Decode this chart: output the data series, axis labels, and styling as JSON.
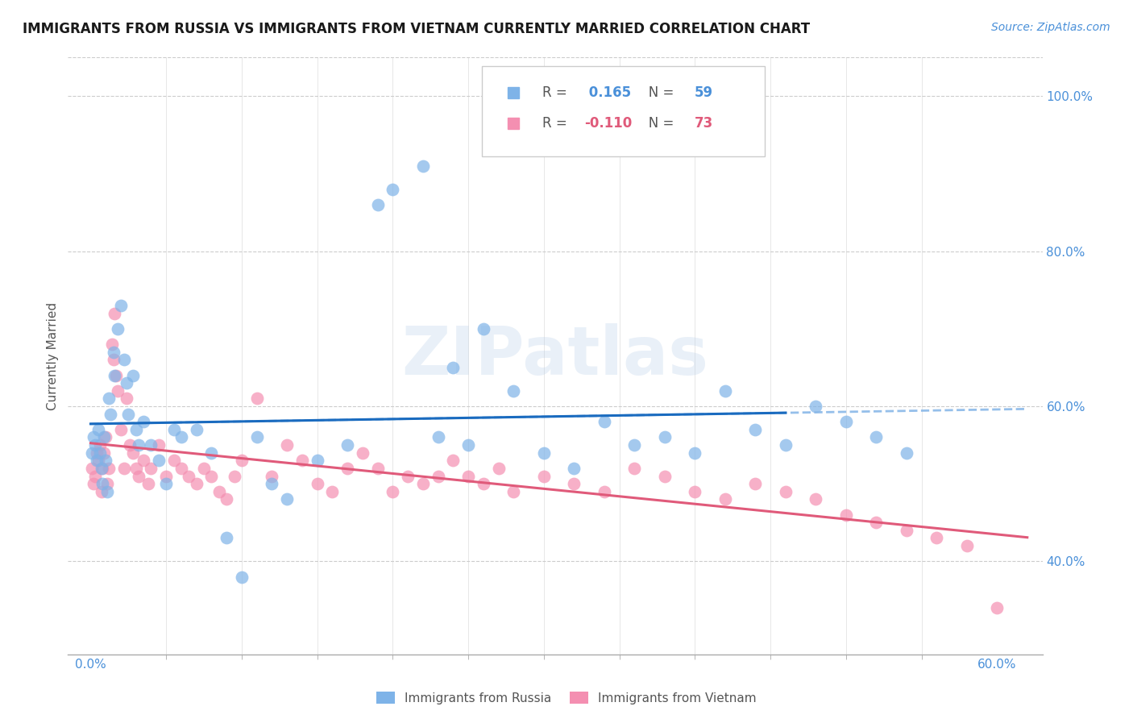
{
  "title": "IMMIGRANTS FROM RUSSIA VS IMMIGRANTS FROM VIETNAM CURRENTLY MARRIED CORRELATION CHART",
  "source": "Source: ZipAtlas.com",
  "ylabel": "Currently Married",
  "right_yticks": [
    40.0,
    60.0,
    80.0,
    100.0
  ],
  "xtick_labels": [
    "0.0%",
    "60.0%"
  ],
  "xtick_positions": [
    0.0,
    60.0
  ],
  "xlim": [
    -1.5,
    63.0
  ],
  "ylim": [
    28.0,
    105.0
  ],
  "russia_color": "#7eb3e8",
  "vietnam_color": "#f48fb1",
  "russia_line_color": "#1a6bbf",
  "vietnam_line_color": "#e05a7a",
  "dashed_line_color": "#8ab8e8",
  "legend_russia_R": "0.165",
  "legend_russia_N": "59",
  "legend_vietnam_R": "-0.110",
  "legend_vietnam_N": "73",
  "watermark": "ZIPatlas",
  "watermark_color": "#b8cfe8",
  "russia_x": [
    0.1,
    0.2,
    0.3,
    0.4,
    0.5,
    0.6,
    0.7,
    0.8,
    0.9,
    1.0,
    1.1,
    1.2,
    1.3,
    1.5,
    1.6,
    1.8,
    2.0,
    2.2,
    2.4,
    2.5,
    2.8,
    3.0,
    3.2,
    3.5,
    4.0,
    4.5,
    5.0,
    5.5,
    6.0,
    7.0,
    8.0,
    9.0,
    10.0,
    11.0,
    12.0,
    13.0,
    15.0,
    17.0,
    19.0,
    20.0,
    22.0,
    23.0,
    24.0,
    25.0,
    26.0,
    28.0,
    30.0,
    32.0,
    34.0,
    36.0,
    38.0,
    40.0,
    42.0,
    44.0,
    46.0,
    48.0,
    50.0,
    52.0,
    54.0
  ],
  "russia_y": [
    54.0,
    56.0,
    55.0,
    53.0,
    57.0,
    54.0,
    52.0,
    50.0,
    56.0,
    53.0,
    49.0,
    61.0,
    59.0,
    67.0,
    64.0,
    70.0,
    73.0,
    66.0,
    63.0,
    59.0,
    64.0,
    57.0,
    55.0,
    58.0,
    55.0,
    53.0,
    50.0,
    57.0,
    56.0,
    57.0,
    54.0,
    43.0,
    38.0,
    56.0,
    50.0,
    48.0,
    53.0,
    55.0,
    86.0,
    88.0,
    91.0,
    56.0,
    65.0,
    55.0,
    70.0,
    62.0,
    54.0,
    52.0,
    58.0,
    55.0,
    56.0,
    54.0,
    62.0,
    57.0,
    55.0,
    60.0,
    58.0,
    56.0,
    54.0
  ],
  "vietnam_x": [
    0.1,
    0.2,
    0.3,
    0.4,
    0.5,
    0.6,
    0.7,
    0.8,
    0.9,
    1.0,
    1.1,
    1.2,
    1.4,
    1.5,
    1.6,
    1.7,
    1.8,
    2.0,
    2.2,
    2.4,
    2.6,
    2.8,
    3.0,
    3.2,
    3.5,
    3.8,
    4.0,
    4.5,
    5.0,
    5.5,
    6.0,
    6.5,
    7.0,
    7.5,
    8.0,
    8.5,
    9.0,
    9.5,
    10.0,
    11.0,
    12.0,
    13.0,
    14.0,
    15.0,
    16.0,
    17.0,
    18.0,
    19.0,
    20.0,
    21.0,
    22.0,
    23.0,
    24.0,
    25.0,
    26.0,
    27.0,
    28.0,
    30.0,
    32.0,
    34.0,
    36.0,
    38.0,
    40.0,
    42.0,
    44.0,
    46.0,
    48.0,
    50.0,
    52.0,
    54.0,
    56.0,
    58.0,
    60.0
  ],
  "vietnam_y": [
    52.0,
    50.0,
    51.0,
    54.0,
    53.0,
    55.0,
    49.0,
    52.0,
    54.0,
    56.0,
    50.0,
    52.0,
    68.0,
    66.0,
    72.0,
    64.0,
    62.0,
    57.0,
    52.0,
    61.0,
    55.0,
    54.0,
    52.0,
    51.0,
    53.0,
    50.0,
    52.0,
    55.0,
    51.0,
    53.0,
    52.0,
    51.0,
    50.0,
    52.0,
    51.0,
    49.0,
    48.0,
    51.0,
    53.0,
    61.0,
    51.0,
    55.0,
    53.0,
    50.0,
    49.0,
    52.0,
    54.0,
    52.0,
    49.0,
    51.0,
    50.0,
    51.0,
    53.0,
    51.0,
    50.0,
    52.0,
    49.0,
    51.0,
    50.0,
    49.0,
    52.0,
    51.0,
    49.0,
    48.0,
    50.0,
    49.0,
    48.0,
    46.0,
    45.0,
    44.0,
    43.0,
    42.0,
    34.0
  ]
}
